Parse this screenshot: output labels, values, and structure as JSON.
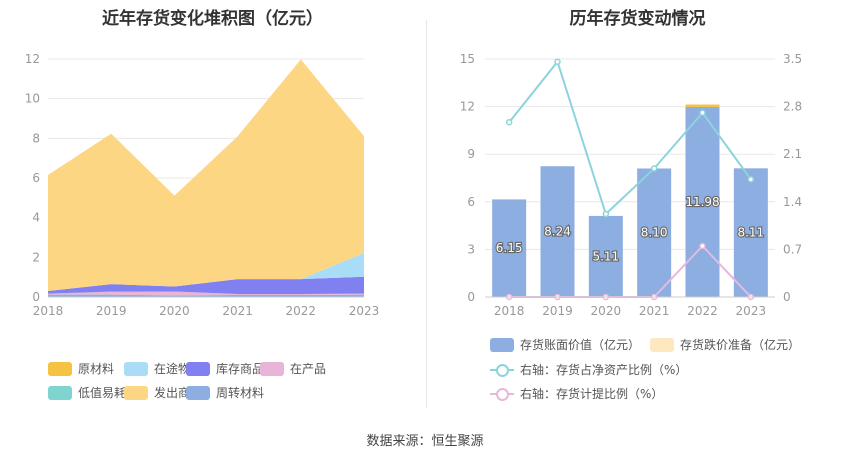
{
  "left": {
    "title": "近年存货变化堆积图（亿元）",
    "legend": [
      {
        "name": "原材料",
        "color": "#f5c242"
      },
      {
        "name": "在途物资",
        "color": "#a8dcf7"
      },
      {
        "name": "库存商品",
        "color": "#8080f0"
      },
      {
        "name": "在产品",
        "color": "#e8b4d8"
      },
      {
        "name": "低值易耗品",
        "color": "#7fd4d0"
      },
      {
        "name": "发出商品",
        "color": "#fdd683"
      },
      {
        "name": "周转材料",
        "color": "#8caee0"
      }
    ]
  },
  "right": {
    "title": "历年存货变动情况",
    "legend": [
      {
        "name": "存货账面价值（亿元）",
        "color": "#8caee0",
        "kind": "box"
      },
      {
        "name": "存货跌价准备（亿元）",
        "color": "#fde8c0",
        "kind": "box"
      },
      {
        "name": "右轴：存货占净资产比例（%）",
        "color": "#8cd4dc",
        "kind": "line"
      },
      {
        "name": "右轴：存货计提比例（%）",
        "color": "#e8b8dc",
        "kind": "line"
      }
    ]
  },
  "source": "数据来源：恒生聚源",
  "chart_data": [
    {
      "type": "area",
      "stacked": true,
      "title": "近年存货变化堆积图（亿元）",
      "categories": [
        "2018",
        "2019",
        "2020",
        "2021",
        "2022",
        "2023"
      ],
      "ylim": [
        0,
        12
      ],
      "yticks": [
        "0",
        "2",
        "4",
        "6",
        "8",
        "10",
        "12"
      ],
      "grid": true,
      "legend_position": "bottom",
      "series": [
        {
          "name": "周转材料",
          "color": "#8caee0",
          "values": [
            0.12,
            0.12,
            0.08,
            0.1,
            0.1,
            0.12
          ]
        },
        {
          "name": "在产品",
          "color": "#e8b4d8",
          "values": [
            0.05,
            0.15,
            0.2,
            0.05,
            0.05,
            0.05
          ]
        },
        {
          "name": "库存商品",
          "color": "#8080f0",
          "values": [
            0.13,
            0.38,
            0.25,
            0.75,
            0.75,
            0.85
          ]
        },
        {
          "name": "在途物资",
          "color": "#a8dcf7",
          "values": [
            0,
            0,
            0,
            0,
            0,
            1.2
          ]
        },
        {
          "name": "低值易耗品",
          "color": "#7fd4d0",
          "values": [
            0,
            0,
            0,
            0,
            0,
            0
          ]
        },
        {
          "name": "原材料",
          "color": "#f5c242",
          "values": [
            0,
            0,
            0,
            0,
            0,
            0
          ]
        },
        {
          "name": "发出商品",
          "color": "#fdd683",
          "values": [
            5.85,
            7.59,
            4.58,
            7.2,
            11.08,
            5.89
          ]
        }
      ]
    },
    {
      "type": "bar",
      "title": "历年存货变动情况",
      "categories": [
        "2018",
        "2019",
        "2020",
        "2021",
        "2022",
        "2023"
      ],
      "ylim": [
        0,
        15
      ],
      "yticks": [
        "0",
        "3",
        "6",
        "9",
        "12",
        "15"
      ],
      "y2lim": [
        0,
        3.5
      ],
      "y2ticks": [
        "0",
        "0.7",
        "1.4",
        "2.1",
        "2.8",
        "3.5"
      ],
      "grid": true,
      "legend_position": "bottom",
      "series": [
        {
          "name": "存货账面价值（亿元）",
          "axis": "left",
          "color": "#8caee0",
          "values": [
            6.15,
            8.24,
            5.11,
            8.1,
            11.98,
            8.11
          ],
          "labels": [
            "6.15",
            "8.24",
            "5.11",
            "8.10",
            "11.98",
            "8.11"
          ]
        },
        {
          "name": "存货跌价准备（亿元）",
          "axis": "left",
          "color": "#fde8c0",
          "values": [
            0,
            0,
            0,
            0,
            0.15,
            0
          ]
        },
        {
          "name": "右轴：存货占净资产比例（%）",
          "axis": "right",
          "color": "#8cd4dc",
          "values": [
            2.57,
            3.46,
            1.22,
            1.89,
            2.71,
            1.73
          ]
        },
        {
          "name": "右轴：存货计提比例（%）",
          "axis": "right",
          "color": "#e8b8dc",
          "values": [
            0,
            0,
            0,
            0,
            0.75,
            0
          ]
        }
      ]
    }
  ]
}
